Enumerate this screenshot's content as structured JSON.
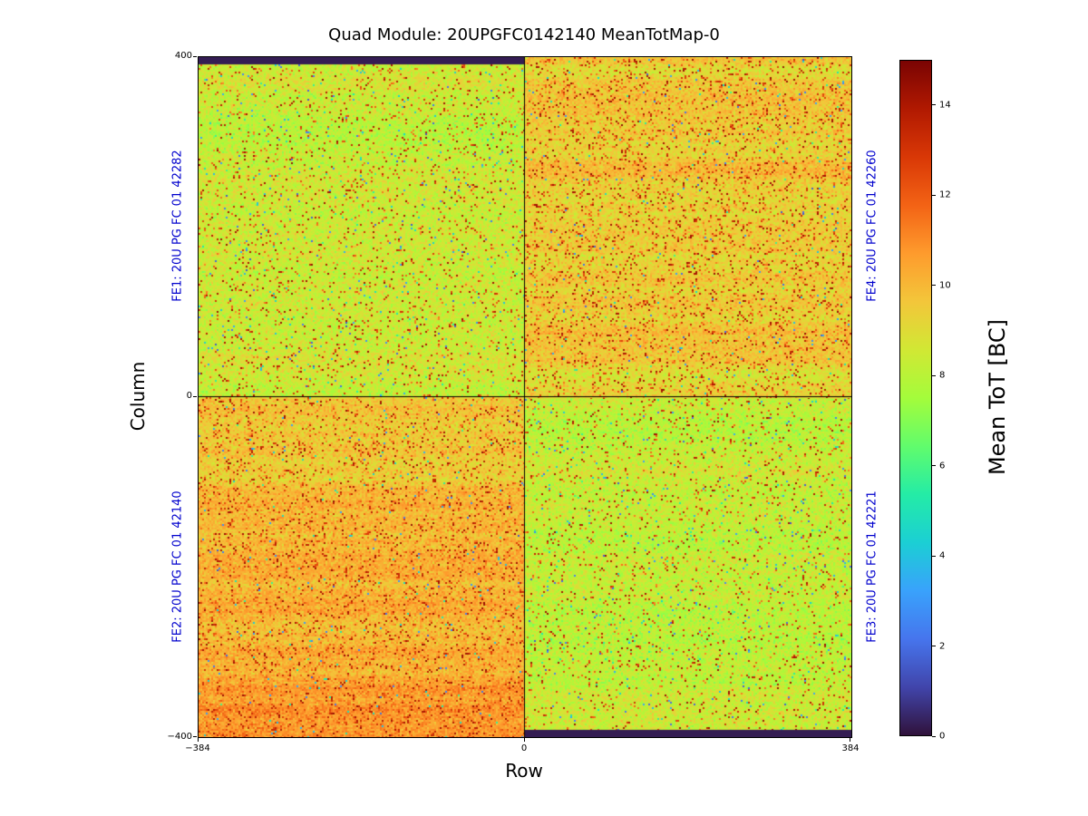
{
  "title": "Quad Module: 20UPGFC0142140 MeanTotMap-0",
  "chart_data": {
    "type": "heatmap",
    "title": "Quad Module: 20UPGFC0142140 MeanTotMap-0",
    "xlabel": "Row",
    "ylabel": "Column",
    "x_range": [
      -384,
      384
    ],
    "y_range": [
      -400,
      400
    ],
    "x_ticks": [
      -384,
      0,
      384
    ],
    "x_tick_labels": [
      "−384",
      "0",
      "384"
    ],
    "y_ticks": [
      400,
      0,
      -400
    ],
    "y_tick_labels": [
      "400",
      "0",
      "−400"
    ],
    "grid": false,
    "legend_position": "colorbar-right",
    "label_color": "#0000cd",
    "colorbar": {
      "label": "Mean ToT [BC]",
      "min": 0,
      "max": 15,
      "ticks": [
        0,
        2,
        4,
        6,
        8,
        10,
        12,
        14
      ],
      "colormap": "turbo",
      "stops": [
        "#30123b",
        "#4145ab",
        "#4675ed",
        "#39a2fc",
        "#1bcfd4",
        "#24eca6",
        "#61fc6c",
        "#a4fc3b",
        "#d1e834",
        "#f3c63a",
        "#fe9b2d",
        "#f36315",
        "#d93806",
        "#b11901",
        "#7a0403"
      ]
    },
    "quadrants": [
      {
        "id": "FE1",
        "label": "FE1: 20U PG FC 01 42282",
        "position": "top-left",
        "side": "left",
        "mean_tot": 8.3,
        "sigma": 1.05,
        "speckle_high": 0.055,
        "speckle_low": 0.012,
        "band_amp": 0.3,
        "v_gradient": 0.2
      },
      {
        "id": "FE2",
        "label": "FE2: 20U PG FC 01 42140",
        "position": "bottom-left",
        "side": "left",
        "mean_tot": 9.3,
        "sigma": 0.95,
        "speckle_high": 0.1,
        "speckle_low": 0.008,
        "band_amp": 0.45,
        "v_gradient": 1.3
      },
      {
        "id": "FE3",
        "label": "FE3: 20U PG FC 01 42221",
        "position": "bottom-right",
        "side": "right",
        "mean_tot": 8.4,
        "sigma": 1.05,
        "speckle_high": 0.05,
        "speckle_low": 0.012,
        "band_amp": 0.35,
        "v_gradient": -0.2
      },
      {
        "id": "FE4",
        "label": "FE4: 20U PG FC 01 42260",
        "position": "top-right",
        "side": "right",
        "mean_tot": 9.6,
        "sigma": 0.95,
        "speckle_high": 0.1,
        "speckle_low": 0.008,
        "band_amp": 0.5,
        "v_gradient": -0.3
      }
    ],
    "masked_strips": [
      {
        "position": "top-left",
        "edge": "top",
        "thickness": 8,
        "value": 0
      },
      {
        "position": "bottom-right",
        "edge": "bottom",
        "thickness": 8,
        "value": 0
      }
    ],
    "dividers": {
      "x": 0,
      "y": 0,
      "color": "#000000"
    }
  }
}
